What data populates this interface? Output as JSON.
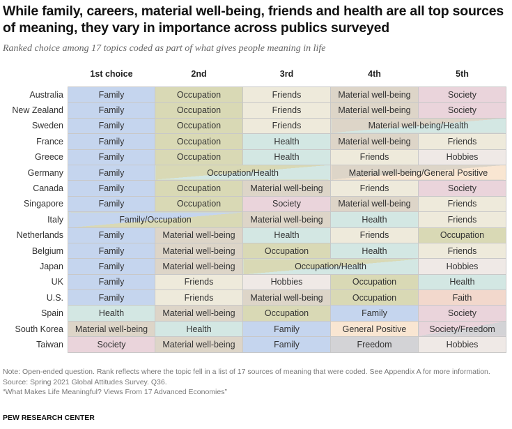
{
  "title": "While family, careers, material well-being, friends and health are all top sources of meaning, they vary in importance across publics surveyed",
  "subtitle": "Ranked choice among 17 topics coded as part of what gives people meaning in life",
  "chart_data": {
    "type": "table",
    "columns": [
      "1st choice",
      "2nd",
      "3rd",
      "4th",
      "5th"
    ],
    "topic_colors": {
      "Family": "#c5d5ee",
      "Occupation": "#d9d9b5",
      "Friends": "#eeeadb",
      "Material well-being": "#ddd5c8",
      "Society": "#ead4db",
      "Health": "#d3e7e3",
      "Hobbies": "#efe9e6",
      "Faith": "#f2d8cc",
      "General Positive": "#f9e6d2",
      "Freedom": "#d3d3d6"
    },
    "rows": [
      {
        "country": "Australia",
        "cells": [
          {
            "label": "Family"
          },
          {
            "label": "Occupation"
          },
          {
            "label": "Friends"
          },
          {
            "label": "Material well-being"
          },
          {
            "label": "Society"
          }
        ]
      },
      {
        "country": "New Zealand",
        "cells": [
          {
            "label": "Family"
          },
          {
            "label": "Occupation"
          },
          {
            "label": "Friends"
          },
          {
            "label": "Material well-being"
          },
          {
            "label": "Society"
          }
        ]
      },
      {
        "country": "Sweden",
        "cells": [
          {
            "label": "Family"
          },
          {
            "label": "Occupation"
          },
          {
            "label": "Friends"
          },
          {
            "label": "Material well-being/Health",
            "span": 2,
            "topics": [
              "Material well-being",
              "Health"
            ]
          }
        ]
      },
      {
        "country": "France",
        "cells": [
          {
            "label": "Family"
          },
          {
            "label": "Occupation"
          },
          {
            "label": "Health"
          },
          {
            "label": "Material well-being"
          },
          {
            "label": "Friends"
          }
        ]
      },
      {
        "country": "Greece",
        "cells": [
          {
            "label": "Family"
          },
          {
            "label": "Occupation"
          },
          {
            "label": "Health"
          },
          {
            "label": "Friends"
          },
          {
            "label": "Hobbies"
          }
        ]
      },
      {
        "country": "Germany",
        "cells": [
          {
            "label": "Family"
          },
          {
            "label": "Occupation/Health",
            "span": 2,
            "topics": [
              "Occupation",
              "Health"
            ]
          },
          {
            "label": "Material well-being/General Positive",
            "span": 2,
            "topics": [
              "Material well-being",
              "General Positive"
            ]
          }
        ]
      },
      {
        "country": "Canada",
        "cells": [
          {
            "label": "Family"
          },
          {
            "label": "Occupation"
          },
          {
            "label": "Material well-being"
          },
          {
            "label": "Friends"
          },
          {
            "label": "Society"
          }
        ]
      },
      {
        "country": "Singapore",
        "cells": [
          {
            "label": "Family"
          },
          {
            "label": "Occupation"
          },
          {
            "label": "Society"
          },
          {
            "label": "Material well-being"
          },
          {
            "label": "Friends"
          }
        ]
      },
      {
        "country": "Italy",
        "cells": [
          {
            "label": "Family/Occupation",
            "span": 2,
            "topics": [
              "Family",
              "Occupation"
            ]
          },
          {
            "label": "Material well-being"
          },
          {
            "label": "Health"
          },
          {
            "label": "Friends"
          }
        ]
      },
      {
        "country": "Netherlands",
        "cells": [
          {
            "label": "Family"
          },
          {
            "label": "Material well-being"
          },
          {
            "label": "Health"
          },
          {
            "label": "Friends"
          },
          {
            "label": "Occupation"
          }
        ]
      },
      {
        "country": "Belgium",
        "cells": [
          {
            "label": "Family"
          },
          {
            "label": "Material well-being"
          },
          {
            "label": "Occupation"
          },
          {
            "label": "Health"
          },
          {
            "label": "Friends"
          }
        ]
      },
      {
        "country": "Japan",
        "cells": [
          {
            "label": "Family"
          },
          {
            "label": "Material well-being"
          },
          {
            "label": "Occupation/Health",
            "span": 2,
            "topics": [
              "Occupation",
              "Health"
            ]
          },
          {
            "label": "Hobbies"
          }
        ]
      },
      {
        "country": "UK",
        "cells": [
          {
            "label": "Family"
          },
          {
            "label": "Friends"
          },
          {
            "label": "Hobbies"
          },
          {
            "label": "Occupation"
          },
          {
            "label": "Health"
          }
        ]
      },
      {
        "country": "U.S.",
        "cells": [
          {
            "label": "Family"
          },
          {
            "label": "Friends"
          },
          {
            "label": "Material well-being"
          },
          {
            "label": "Occupation"
          },
          {
            "label": "Faith"
          }
        ]
      },
      {
        "country": "Spain",
        "cells": [
          {
            "label": "Health"
          },
          {
            "label": "Material well-being"
          },
          {
            "label": "Occupation"
          },
          {
            "label": "Family"
          },
          {
            "label": "Society"
          }
        ]
      },
      {
        "country": "South Korea",
        "cells": [
          {
            "label": "Material well-being"
          },
          {
            "label": "Health"
          },
          {
            "label": "Family"
          },
          {
            "label": "General Positive"
          },
          {
            "label": "Society/Freedom",
            "topics": [
              "Society",
              "Freedom"
            ]
          }
        ]
      },
      {
        "country": "Taiwan",
        "cells": [
          {
            "label": "Society"
          },
          {
            "label": "Material well-being"
          },
          {
            "label": "Family"
          },
          {
            "label": "Freedom"
          },
          {
            "label": "Hobbies"
          }
        ]
      }
    ]
  },
  "notes": [
    "Note: Open-ended question. Rank reflects where the topic fell in a list of 17 sources of meaning that were coded. See Appendix A for more information.",
    "Source: Spring 2021 Global Attitudes Survey. Q36.",
    "“What Makes Life Meaningful? Views From 17 Advanced Economies”"
  ],
  "brand": "PEW RESEARCH CENTER"
}
